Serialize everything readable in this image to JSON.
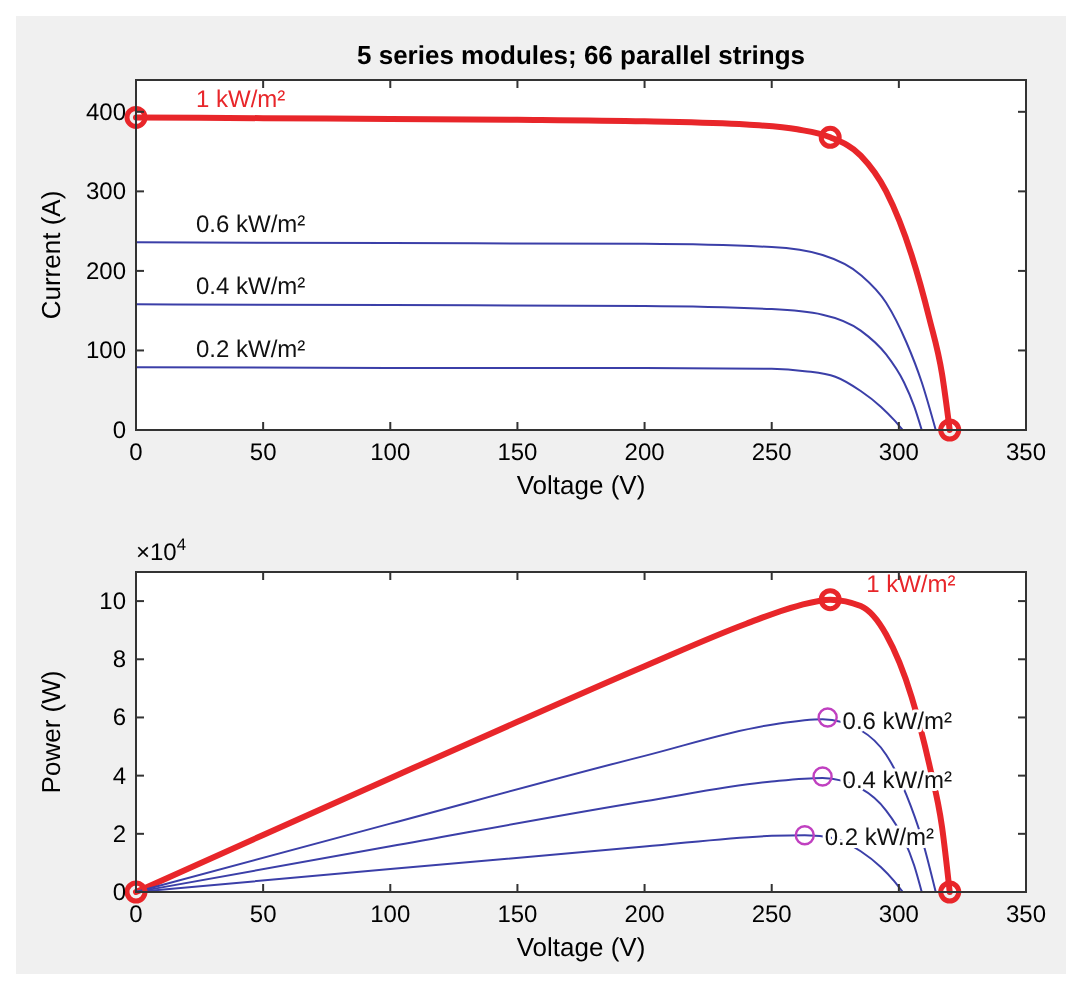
{
  "chart_data": [
    {
      "type": "line",
      "title": "5 series modules; 66 parallel strings",
      "xlabel": "Voltage (V)",
      "ylabel": "Current (A)",
      "xlim": [
        0,
        350
      ],
      "xticks": [
        0,
        50,
        100,
        150,
        200,
        250,
        300,
        350
      ],
      "ylim": [
        0,
        440
      ],
      "yticks": [
        0,
        100,
        200,
        300,
        400
      ],
      "grid": false,
      "line_style": "solid",
      "series": [
        {
          "name": "1 kW/m²",
          "color": "#e8262a",
          "x": [
            0,
            50,
            100,
            150,
            200,
            240,
            260,
            273,
            285,
            295,
            305,
            312,
            317,
            320
          ],
          "values": [
            393,
            392,
            391,
            390,
            388,
            384,
            378,
            368,
            345,
            300,
            220,
            140,
            70,
            0
          ]
        },
        {
          "name": "0.6 kW/m²",
          "color": "#3b3fa8",
          "x": [
            0,
            100,
            200,
            250,
            270,
            285,
            295,
            303,
            309,
            314.5
          ],
          "values": [
            236,
            235,
            234,
            230,
            220,
            195,
            160,
            110,
            60,
            0
          ]
        },
        {
          "name": "0.4 kW/m²",
          "color": "#3b3fa8",
          "x": [
            0,
            100,
            200,
            250,
            270,
            285,
            295,
            302,
            306,
            309
          ],
          "values": [
            158,
            157,
            156,
            152,
            145,
            125,
            95,
            60,
            30,
            0
          ]
        },
        {
          "name": "0.2 kW/m²",
          "color": "#3b3fa8",
          "x": [
            0,
            100,
            200,
            250,
            263,
            275,
            285,
            293,
            298,
            301.5
          ],
          "values": [
            79,
            78,
            78,
            77,
            74,
            67,
            49,
            29,
            13,
            0
          ]
        },
        {
          "type": "scatter",
          "marker": "circle",
          "color": "#e8262a",
          "x": [
            0,
            273,
            320
          ],
          "values": [
            393,
            368,
            0
          ]
        }
      ]
    },
    {
      "type": "line",
      "xlabel": "Voltage (V)",
      "ylabel": "Power (W)",
      "annotations": [
        "×10$^{4}$"
      ],
      "xlim": [
        0,
        350
      ],
      "xticks": [
        0,
        50,
        100,
        150,
        200,
        250,
        300,
        350
      ],
      "ylim": [
        0,
        11
      ],
      "yticks": [
        0,
        2,
        4,
        6,
        8,
        10
      ],
      "grid": false,
      "line_style": "solid",
      "series": [
        {
          "name": "1 kW/m²",
          "color": "#e8262a",
          "x": [
            0,
            50,
            100,
            150,
            200,
            240,
            260,
            273,
            285,
            295,
            305,
            312,
            317,
            320
          ],
          "values": [
            0,
            1.96,
            3.91,
            5.85,
            7.76,
            9.22,
            9.83,
            10.05,
            9.83,
            8.85,
            6.71,
            4.37,
            2.22,
            0
          ]
        },
        {
          "name": "0.6 kW/m²",
          "color": "#3b3fa8",
          "x": [
            0,
            100,
            200,
            250,
            270,
            285,
            295,
            303,
            309,
            314.5
          ],
          "values": [
            0,
            2.35,
            4.68,
            5.75,
            5.94,
            5.56,
            4.72,
            3.33,
            1.85,
            0
          ]
        },
        {
          "name": "0.4 kW/m²",
          "color": "#3b3fa8",
          "x": [
            0,
            100,
            200,
            250,
            270,
            285,
            295,
            302,
            306,
            309
          ],
          "values": [
            0,
            1.57,
            3.12,
            3.8,
            3.92,
            3.56,
            2.8,
            1.81,
            0.92,
            0
          ]
        },
        {
          "name": "0.2 kW/m²",
          "color": "#3b3fa8",
          "x": [
            0,
            100,
            200,
            250,
            263,
            275,
            285,
            293,
            298,
            301.5
          ],
          "values": [
            0,
            0.79,
            1.56,
            1.93,
            1.95,
            1.84,
            1.4,
            0.85,
            0.39,
            0
          ]
        },
        {
          "type": "scatter",
          "marker": "circle",
          "color": "#e8262a",
          "x": [
            0,
            273,
            320
          ],
          "values": [
            0,
            10.05,
            0
          ]
        },
        {
          "type": "scatter",
          "marker": "circle",
          "color": "#c040c0",
          "x": [
            272,
            270,
            263
          ],
          "values": [
            6,
            3.97,
            1.95
          ]
        }
      ]
    }
  ]
}
